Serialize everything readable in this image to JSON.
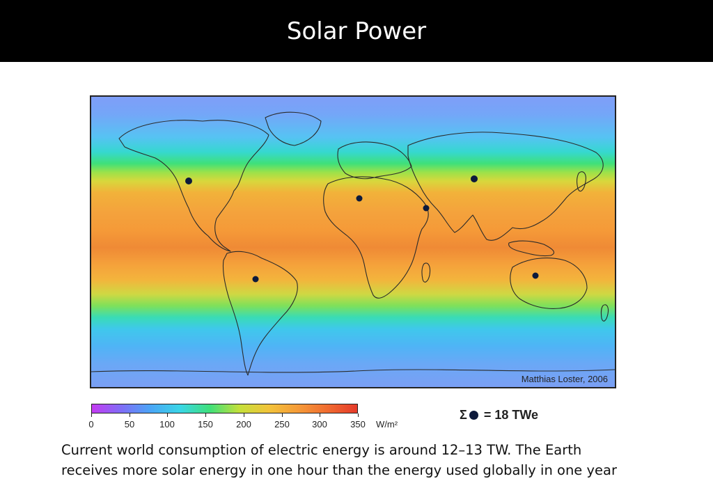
{
  "slide": {
    "title": "Solar Power",
    "caption_line1": "Current world consumption of electric energy is around 12–13 TW. The Earth",
    "caption_line2": "receives more solar energy in one hour than the energy used globally in one year"
  },
  "map": {
    "credit": "Matthias Loster, 2006",
    "legend_colors": [
      "#c43bf2",
      "#7f6df6",
      "#4aa6f6",
      "#3ad6e6",
      "#3fe07a",
      "#c4e03a",
      "#f2c33a",
      "#f59a38",
      "#f06b30",
      "#e53a2a"
    ],
    "highlight_dot_color": "#0d1a3c",
    "highlight_regions": [
      "north-america",
      "south-america",
      "north-africa",
      "east-africa",
      "central-asia",
      "australia"
    ]
  },
  "colorbar": {
    "min": 0,
    "max": 350,
    "ticks": [
      "0",
      "50",
      "100",
      "150",
      "200",
      "250",
      "300",
      "350"
    ],
    "unit": "W/m²"
  },
  "summary": {
    "sigma": "Σ",
    "value": "= 18 TWe"
  }
}
